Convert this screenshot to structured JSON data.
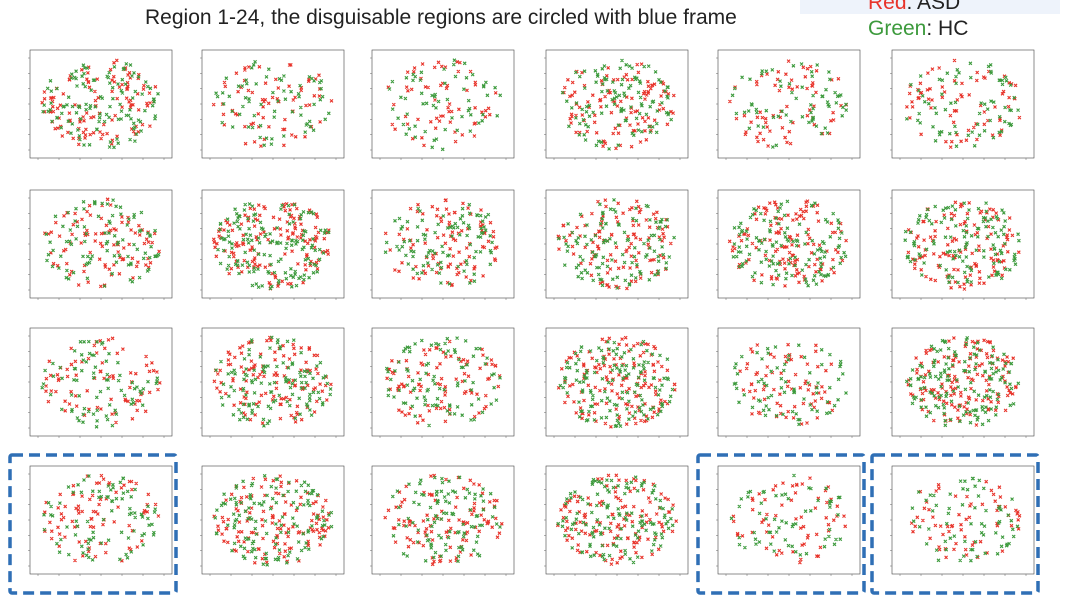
{
  "header": {
    "title": "Region 1-24, the disguisable regions are circled with blue frame"
  },
  "legend": [
    {
      "color_word": "Red",
      "label": ": ASD",
      "color": "#e8332a"
    },
    {
      "color_word": "Green",
      "label": ": HC",
      "color": "#3c9a3c"
    }
  ],
  "grid": {
    "rows": 4,
    "columns": 6,
    "highlight_color": "#2f6fb5",
    "highlighted": [
      false,
      false,
      false,
      false,
      false,
      false,
      false,
      false,
      false,
      false,
      false,
      false,
      false,
      false,
      false,
      false,
      false,
      false,
      true,
      false,
      false,
      false,
      true,
      true
    ]
  }
}
